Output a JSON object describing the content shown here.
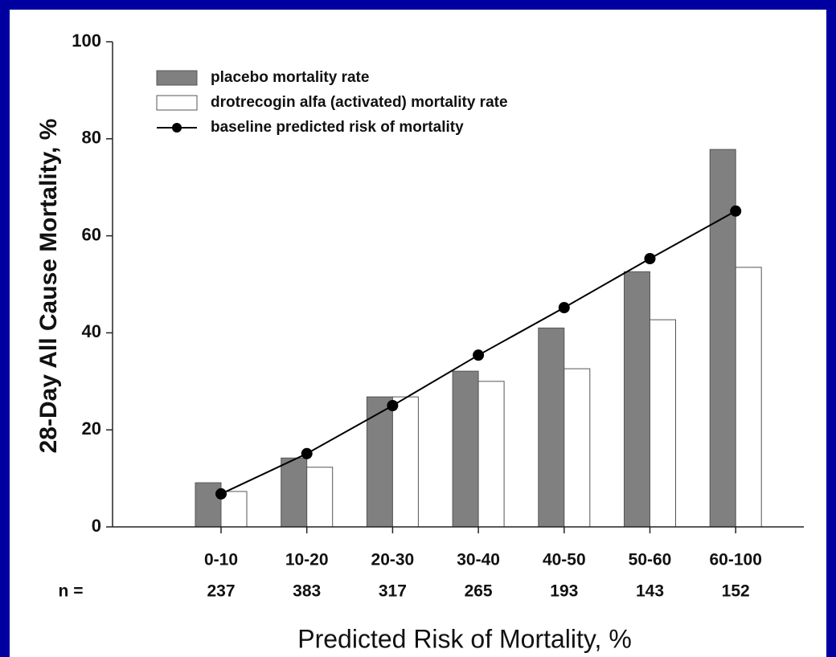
{
  "chart_data": {
    "type": "bar",
    "categories": [
      "0-10",
      "10-20",
      "20-30",
      "30-40",
      "40-50",
      "50-60",
      "60-100"
    ],
    "n_label": "n =",
    "n_values": [
      237,
      383,
      317,
      265,
      193,
      143,
      152
    ],
    "x_label": "Predicted Risk of Mortality, %",
    "y_label": "28-Day All Cause Mortality, %",
    "ylim": [
      0,
      100
    ],
    "yticks": [
      0,
      20,
      40,
      60,
      80,
      100
    ],
    "grid": false,
    "legend_position": "upper left",
    "series": [
      {
        "name": "placebo mortality rate",
        "type": "bar",
        "color": "#808080",
        "values": [
          9.1,
          14.2,
          26.8,
          32.1,
          41,
          52.6,
          77.8
        ]
      },
      {
        "name": "drotrecogin alfa (activated) mortality rate",
        "type": "bar",
        "color": "#ffffff",
        "values": [
          7.3,
          12.3,
          26.8,
          30,
          32.6,
          42.7,
          53.5
        ]
      },
      {
        "name": "baseline predicted risk of mortality",
        "type": "line",
        "color": "#000000",
        "values": [
          6.8,
          15.1,
          25,
          35.4,
          45.2,
          55.3,
          65.1
        ]
      }
    ]
  }
}
